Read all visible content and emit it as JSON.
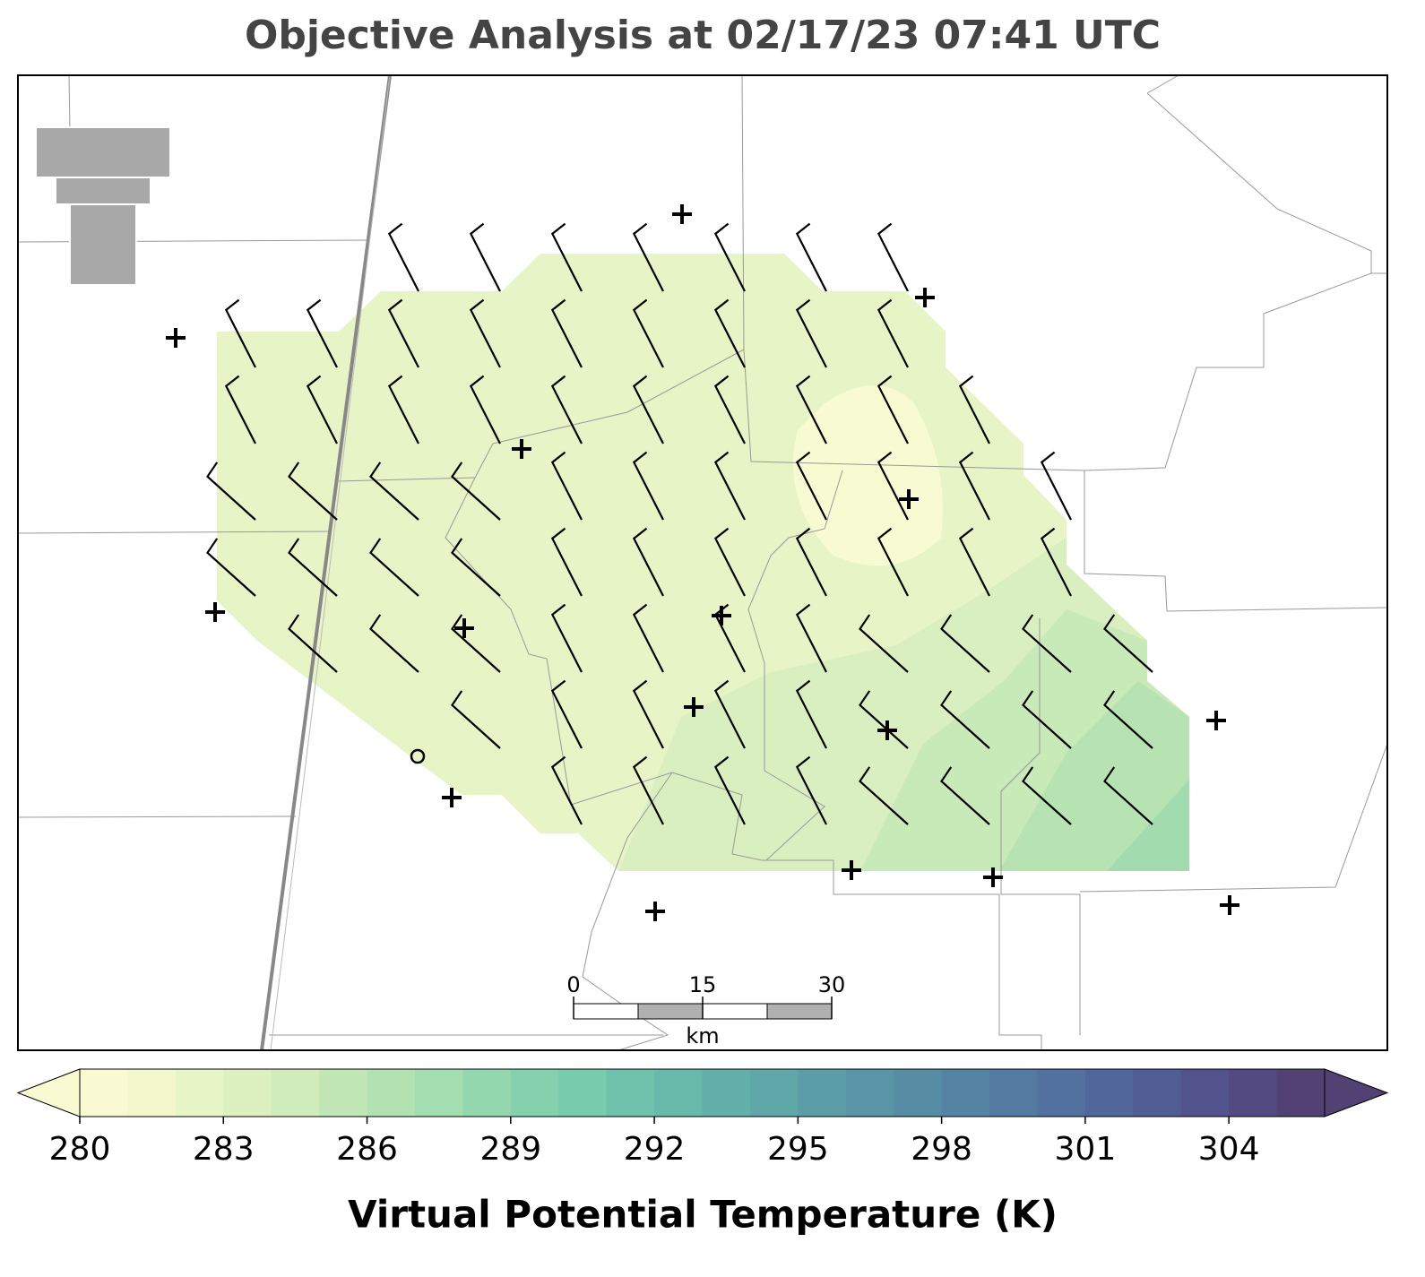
{
  "title": "Objective Analysis at 02/17/23 07:41 UTC",
  "colorbar": {
    "label": "Virtual Potential Temperature (K)",
    "lim": [
      280,
      306
    ],
    "ticks": [
      280,
      283,
      286,
      289,
      292,
      295,
      298,
      301,
      304
    ],
    "colors": [
      "#fafad2",
      "#f2f8cc",
      "#e8f5c6",
      "#ddf1c0",
      "#d0ecbb",
      "#c1e7b6",
      "#b2e2b2",
      "#a3ddb0",
      "#93d7af",
      "#85d1ae",
      "#79cbad",
      "#70c2ac",
      "#69b9ab",
      "#63b0aa",
      "#5fa7a9",
      "#5c9ea8",
      "#5995a7",
      "#578ca5",
      "#5583a3",
      "#537aa1",
      "#52719f",
      "#51679b",
      "#515d95",
      "#52538c",
      "#524a80",
      "#514273"
    ]
  },
  "scale_bar": {
    "ticks": [
      0,
      15,
      30
    ],
    "unit": "km"
  }
}
